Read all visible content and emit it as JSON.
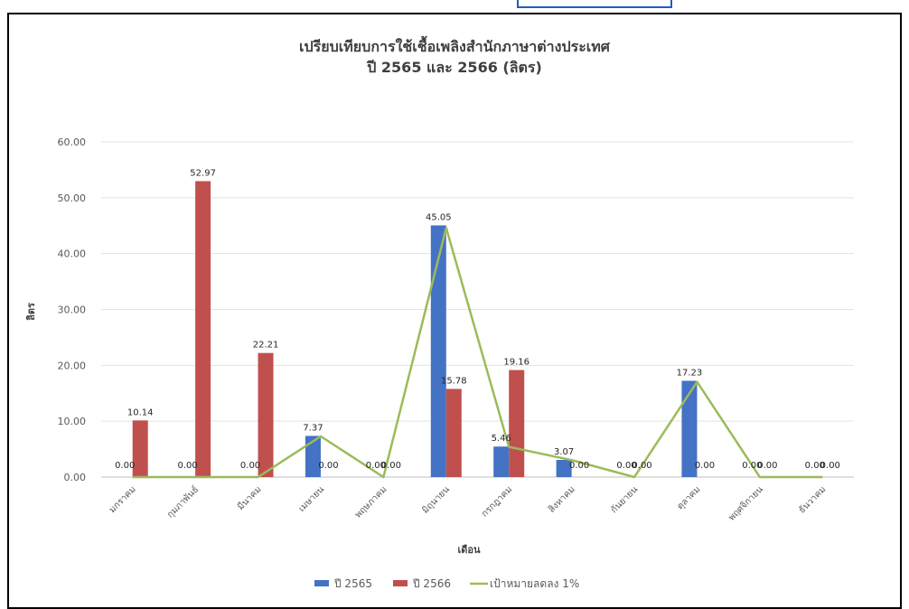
{
  "chart_data": {
    "type": "bar",
    "title": "เปรียบเทียบการใช้เชื้อเพลิงสำนักภาษาต่างประเทศ",
    "subtitle": "ปี 2565 และ 2566 (ลิตร)",
    "xlabel": "เดือน",
    "ylabel": "ลิตร",
    "ylim": [
      0,
      60
    ],
    "yticks": [
      "0.00",
      "10.00",
      "20.00",
      "30.00",
      "40.00",
      "50.00",
      "60.00"
    ],
    "grid": true,
    "legend_position": "bottom",
    "categories": [
      "มกราคม",
      "กุมภาพันธ์",
      "มีนาคม",
      "เมษายน",
      "พฤษภาคม",
      "มิถุนายน",
      "กรกฎาคม",
      "สิงหาคม",
      "กันยายน",
      "ตุลาคม",
      "พฤศจิกายน",
      "ธันวาคม"
    ],
    "series": [
      {
        "name": "ปี 2565",
        "type": "bar",
        "color": "#4472c4",
        "values": [
          0.0,
          0.0,
          0.0,
          7.37,
          0.0,
          45.05,
          5.46,
          3.07,
          0.0,
          17.23,
          0.0,
          0.0
        ],
        "labels": [
          "0.00",
          "0.00",
          "0.00",
          "7.37",
          "0.00",
          "45.05",
          "5.46",
          "3.07",
          "0.00",
          "17.23",
          "0.00",
          "0.00"
        ]
      },
      {
        "name": "ปี 2566",
        "type": "bar",
        "color": "#c0504d",
        "values": [
          10.14,
          52.97,
          22.21,
          0.0,
          0.0,
          15.78,
          19.16,
          0.0,
          0.0,
          0.0,
          0.0,
          0.0
        ],
        "labels": [
          "10.14",
          "52.97",
          "22.21",
          "0.00",
          "0.00",
          "15.78",
          "19.16",
          "0.00",
          "0.00",
          "0.00",
          "0.00",
          "0.00"
        ]
      },
      {
        "name": "เป้าหมายลดลง 1%",
        "type": "line",
        "color": "#9bbb59",
        "values": [
          0.0,
          0.0,
          0.0,
          7.3,
          0.0,
          44.6,
          5.41,
          3.04,
          0.0,
          17.06,
          0.0,
          0.0
        ]
      }
    ]
  }
}
